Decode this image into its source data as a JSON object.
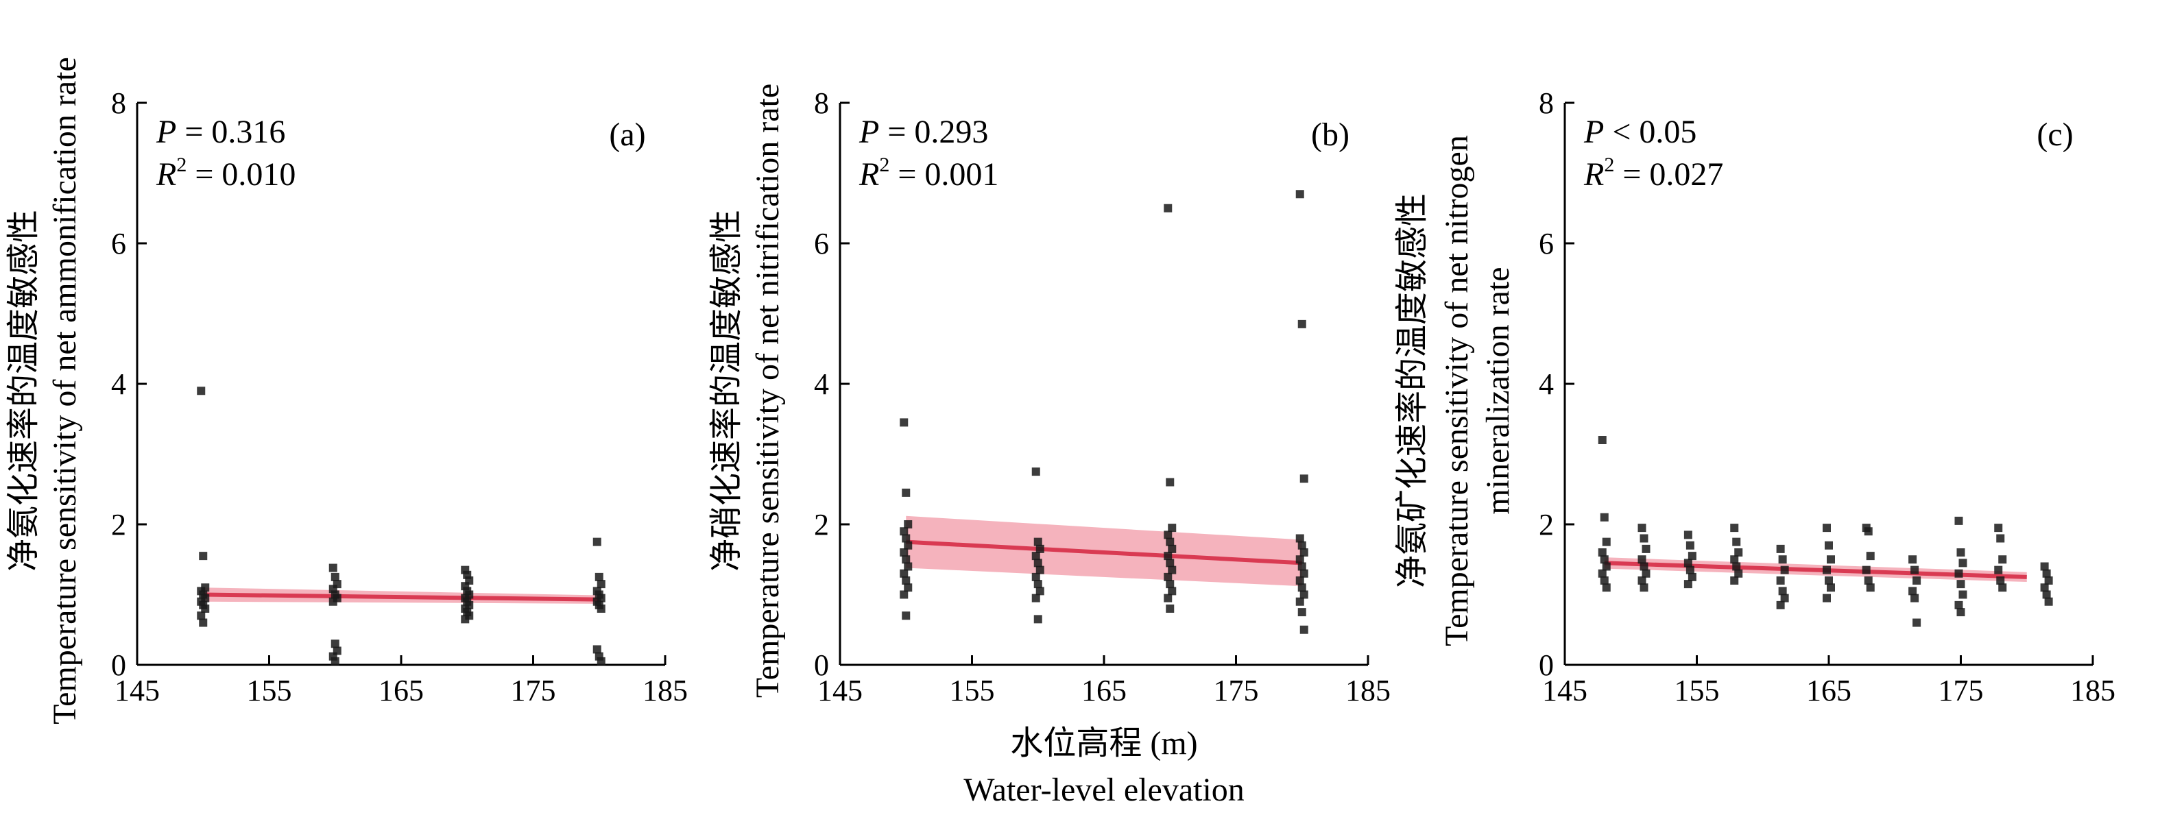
{
  "chart_data": [
    {
      "type": "scatter",
      "panel_label": "(a)",
      "ylabel_cn": "净氨化速率的温度敏感性",
      "ylabel_en": [
        "Temperature sensitivity of net ammonification rate"
      ],
      "xlim": [
        145,
        185
      ],
      "ylim": [
        0,
        8
      ],
      "x_ticks": [
        145,
        155,
        165,
        175,
        185
      ],
      "y_ticks": [
        0,
        2,
        4,
        6,
        8
      ],
      "stats": {
        "p_label": "P",
        "p_op": "=",
        "p_value": "0.316",
        "r2_label": "R",
        "r2_sup": "2",
        "r2_op": "=",
        "r2_value": "0.010"
      },
      "fit": {
        "x": [
          150,
          180
        ],
        "y": [
          1.0,
          0.93
        ],
        "ci_half_width": [
          0.1,
          0.06
        ]
      },
      "groups": [
        {
          "x": 150,
          "y": [
            3.9,
            1.55,
            1.1,
            1.05,
            1.0,
            0.95,
            0.9,
            0.85,
            0.8,
            0.7,
            0.6
          ]
        },
        {
          "x": 160,
          "y": [
            1.38,
            1.25,
            1.15,
            1.08,
            1.0,
            0.95,
            0.9,
            0.3,
            0.2,
            0.12,
            0.05
          ]
        },
        {
          "x": 170,
          "y": [
            1.35,
            1.28,
            1.2,
            1.12,
            1.05,
            1.0,
            0.95,
            0.9,
            0.85,
            0.8,
            0.75,
            0.7,
            0.65
          ]
        },
        {
          "x": 180,
          "y": [
            1.75,
            1.25,
            1.15,
            1.05,
            1.0,
            0.95,
            0.9,
            0.85,
            0.8,
            0.22,
            0.12,
            0.05
          ]
        }
      ]
    },
    {
      "type": "scatter",
      "panel_label": "(b)",
      "ylabel_cn": "净硝化速率的温度敏感性",
      "ylabel_en": [
        "Temperature sensitivity of net nitrification rate"
      ],
      "xlim": [
        145,
        185
      ],
      "ylim": [
        0,
        8
      ],
      "x_ticks": [
        145,
        155,
        165,
        175,
        185
      ],
      "y_ticks": [
        0,
        2,
        4,
        6,
        8
      ],
      "xlabel_cn": "水位高程 (m)",
      "xlabel_en": "Water-level elevation",
      "stats": {
        "p_label": "P",
        "p_op": "=",
        "p_value": "0.293",
        "r2_label": "R",
        "r2_sup": "2",
        "r2_op": "=",
        "r2_value": "0.001"
      },
      "fit": {
        "x": [
          150,
          180
        ],
        "y": [
          1.75,
          1.45
        ],
        "ci_half_width": [
          0.37,
          0.33
        ]
      },
      "groups": [
        {
          "x": 150,
          "y": [
            3.45,
            2.45,
            2.0,
            1.9,
            1.8,
            1.7,
            1.6,
            1.5,
            1.4,
            1.3,
            1.2,
            1.1,
            1.0,
            0.7
          ]
        },
        {
          "x": 160,
          "y": [
            2.75,
            1.75,
            1.65,
            1.55,
            1.45,
            1.35,
            1.25,
            1.15,
            1.05,
            0.95,
            0.65
          ]
        },
        {
          "x": 170,
          "y": [
            6.5,
            2.6,
            1.95,
            1.85,
            1.75,
            1.65,
            1.55,
            1.45,
            1.35,
            1.25,
            1.15,
            1.05,
            0.95,
            0.8
          ]
        },
        {
          "x": 180,
          "y": [
            6.7,
            4.85,
            2.65,
            1.8,
            1.7,
            1.6,
            1.5,
            1.4,
            1.3,
            1.2,
            1.1,
            1.0,
            0.9,
            0.75,
            0.5
          ]
        }
      ]
    },
    {
      "type": "scatter",
      "panel_label": "(c)",
      "ylabel_cn": "净氨矿化速率的温度敏感性",
      "ylabel_en": [
        "Temperature sensitivity of net  nitrogen",
        "mineralization rate"
      ],
      "xlim": [
        145,
        185
      ],
      "ylim": [
        0,
        8
      ],
      "x_ticks": [
        145,
        155,
        165,
        175,
        185
      ],
      "y_ticks": [
        0,
        2,
        4,
        6,
        8
      ],
      "stats": {
        "p_label": "P",
        "p_op": "<",
        "p_value": "0.05",
        "r2_label": "R",
        "r2_sup": "2",
        "r2_op": "=",
        "r2_value": "0.027"
      },
      "fit": {
        "x": [
          148,
          180
        ],
        "y": [
          1.45,
          1.25
        ],
        "ci_half_width": [
          0.08,
          0.07
        ]
      },
      "groups": [
        {
          "x": 148,
          "y": [
            3.2,
            2.1,
            1.75,
            1.6,
            1.5,
            1.4,
            1.3,
            1.2,
            1.1
          ]
        },
        {
          "x": 151,
          "y": [
            1.95,
            1.8,
            1.65,
            1.5,
            1.4,
            1.3,
            1.2,
            1.1
          ]
        },
        {
          "x": 154.5,
          "y": [
            1.85,
            1.7,
            1.55,
            1.45,
            1.35,
            1.25,
            1.15
          ]
        },
        {
          "x": 158,
          "y": [
            1.95,
            1.75,
            1.6,
            1.5,
            1.4,
            1.3,
            1.2
          ]
        },
        {
          "x": 161.5,
          "y": [
            1.65,
            1.5,
            1.35,
            1.2,
            1.05,
            0.95,
            0.85
          ]
        },
        {
          "x": 165,
          "y": [
            1.95,
            1.7,
            1.5,
            1.35,
            1.2,
            1.1,
            0.95
          ]
        },
        {
          "x": 168,
          "y": [
            1.95,
            1.9,
            1.55,
            1.35,
            1.2,
            1.1
          ]
        },
        {
          "x": 171.5,
          "y": [
            1.5,
            1.35,
            1.2,
            1.05,
            0.95,
            0.6
          ]
        },
        {
          "x": 175,
          "y": [
            2.05,
            1.6,
            1.45,
            1.3,
            1.15,
            1.0,
            0.85,
            0.75
          ]
        },
        {
          "x": 178,
          "y": [
            1.95,
            1.8,
            1.5,
            1.35,
            1.2,
            1.1
          ]
        },
        {
          "x": 181.5,
          "y": [
            1.4,
            1.3,
            1.2,
            1.1,
            1.0,
            0.9
          ]
        }
      ]
    }
  ]
}
